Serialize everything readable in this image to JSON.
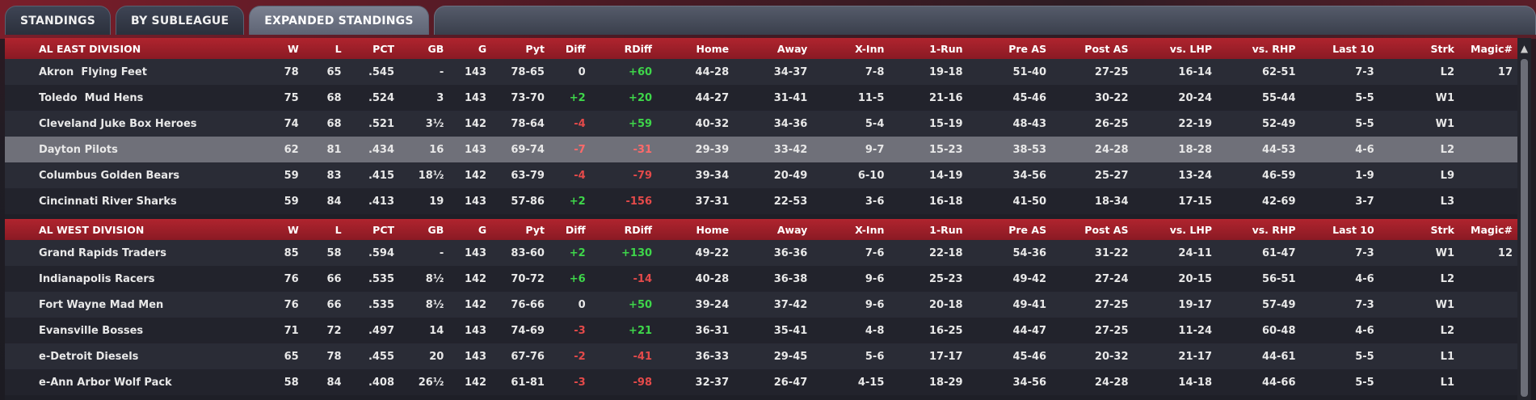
{
  "tabs": [
    {
      "label": "STANDINGS",
      "active": false
    },
    {
      "label": "BY SUBLEAGUE",
      "active": false
    },
    {
      "label": "EXPANDED STANDINGS",
      "active": true
    }
  ],
  "columns": [
    "W",
    "L",
    "PCT",
    "GB",
    "G",
    "Pyt",
    "Diff",
    "RDiff",
    "Home",
    "Away",
    "X-Inn",
    "1-Run",
    "Pre AS",
    "Post AS",
    "vs. LHP",
    "vs. RHP",
    "Last 10",
    "Strk",
    "Magic#"
  ],
  "divisions": [
    {
      "name": "AL EAST DIVISION",
      "teams": [
        {
          "team": "Akron  Flying Feet",
          "W": "78",
          "L": "65",
          "PCT": ".545",
          "GB": "-",
          "G": "143",
          "Pyt": "78-65",
          "Diff": "0",
          "RDiff": "+60",
          "Home": "44-28",
          "Away": "34-37",
          "XInn": "7-8",
          "OneRun": "19-18",
          "PreAS": "51-40",
          "PostAS": "27-25",
          "vsLHP": "16-14",
          "vsRHP": "62-51",
          "Last10": "7-3",
          "Strk": "L2",
          "Magic": "17"
        },
        {
          "team": "Toledo  Mud Hens",
          "W": "75",
          "L": "68",
          "PCT": ".524",
          "GB": "3",
          "G": "143",
          "Pyt": "73-70",
          "Diff": "+2",
          "RDiff": "+20",
          "Home": "44-27",
          "Away": "31-41",
          "XInn": "11-5",
          "OneRun": "21-16",
          "PreAS": "45-46",
          "PostAS": "30-22",
          "vsLHP": "20-24",
          "vsRHP": "55-44",
          "Last10": "5-5",
          "Strk": "W1",
          "Magic": ""
        },
        {
          "team": "Cleveland Juke Box Heroes",
          "W": "74",
          "L": "68",
          "PCT": ".521",
          "GB": "3½",
          "G": "142",
          "Pyt": "78-64",
          "Diff": "-4",
          "RDiff": "+59",
          "Home": "40-32",
          "Away": "34-36",
          "XInn": "5-4",
          "OneRun": "15-19",
          "PreAS": "48-43",
          "PostAS": "26-25",
          "vsLHP": "22-19",
          "vsRHP": "52-49",
          "Last10": "5-5",
          "Strk": "W1",
          "Magic": ""
        },
        {
          "team": "Dayton Pilots",
          "W": "62",
          "L": "81",
          "PCT": ".434",
          "GB": "16",
          "G": "143",
          "Pyt": "69-74",
          "Diff": "-7",
          "RDiff": "-31",
          "Home": "29-39",
          "Away": "33-42",
          "XInn": "9-7",
          "OneRun": "15-23",
          "PreAS": "38-53",
          "PostAS": "24-28",
          "vsLHP": "18-28",
          "vsRHP": "44-53",
          "Last10": "4-6",
          "Strk": "L2",
          "Magic": "",
          "highlight": true
        },
        {
          "team": "Columbus Golden Bears",
          "W": "59",
          "L": "83",
          "PCT": ".415",
          "GB": "18½",
          "G": "142",
          "Pyt": "63-79",
          "Diff": "-4",
          "RDiff": "-79",
          "Home": "39-34",
          "Away": "20-49",
          "XInn": "6-10",
          "OneRun": "14-19",
          "PreAS": "34-56",
          "PostAS": "25-27",
          "vsLHP": "13-24",
          "vsRHP": "46-59",
          "Last10": "1-9",
          "Strk": "L9",
          "Magic": ""
        },
        {
          "team": "Cincinnati River Sharks",
          "W": "59",
          "L": "84",
          "PCT": ".413",
          "GB": "19",
          "G": "143",
          "Pyt": "57-86",
          "Diff": "+2",
          "RDiff": "-156",
          "Home": "37-31",
          "Away": "22-53",
          "XInn": "3-6",
          "OneRun": "16-18",
          "PreAS": "41-50",
          "PostAS": "18-34",
          "vsLHP": "17-15",
          "vsRHP": "42-69",
          "Last10": "3-7",
          "Strk": "L3",
          "Magic": ""
        }
      ]
    },
    {
      "name": "AL WEST DIVISION",
      "teams": [
        {
          "team": "Grand Rapids Traders",
          "W": "85",
          "L": "58",
          "PCT": ".594",
          "GB": "-",
          "G": "143",
          "Pyt": "83-60",
          "Diff": "+2",
          "RDiff": "+130",
          "Home": "49-22",
          "Away": "36-36",
          "XInn": "7-6",
          "OneRun": "22-18",
          "PreAS": "54-36",
          "PostAS": "31-22",
          "vsLHP": "24-11",
          "vsRHP": "61-47",
          "Last10": "7-3",
          "Strk": "W1",
          "Magic": "12"
        },
        {
          "team": "Indianapolis Racers",
          "W": "76",
          "L": "66",
          "PCT": ".535",
          "GB": "8½",
          "G": "142",
          "Pyt": "70-72",
          "Diff": "+6",
          "RDiff": "-14",
          "Home": "40-28",
          "Away": "36-38",
          "XInn": "9-6",
          "OneRun": "25-23",
          "PreAS": "49-42",
          "PostAS": "27-24",
          "vsLHP": "20-15",
          "vsRHP": "56-51",
          "Last10": "4-6",
          "Strk": "L2",
          "Magic": ""
        },
        {
          "team": "Fort Wayne Mad Men",
          "W": "76",
          "L": "66",
          "PCT": ".535",
          "GB": "8½",
          "G": "142",
          "Pyt": "76-66",
          "Diff": "0",
          "RDiff": "+50",
          "Home": "39-24",
          "Away": "37-42",
          "XInn": "9-6",
          "OneRun": "20-18",
          "PreAS": "49-41",
          "PostAS": "27-25",
          "vsLHP": "19-17",
          "vsRHP": "57-49",
          "Last10": "7-3",
          "Strk": "W1",
          "Magic": ""
        },
        {
          "team": "Evansville Bosses",
          "W": "71",
          "L": "72",
          "PCT": ".497",
          "GB": "14",
          "G": "143",
          "Pyt": "74-69",
          "Diff": "-3",
          "RDiff": "+21",
          "Home": "36-31",
          "Away": "35-41",
          "XInn": "4-8",
          "OneRun": "16-25",
          "PreAS": "44-47",
          "PostAS": "27-25",
          "vsLHP": "11-24",
          "vsRHP": "60-48",
          "Last10": "4-6",
          "Strk": "L2",
          "Magic": ""
        },
        {
          "team": "e-Detroit Diesels",
          "W": "65",
          "L": "78",
          "PCT": ".455",
          "GB": "20",
          "G": "143",
          "Pyt": "67-76",
          "Diff": "-2",
          "RDiff": "-41",
          "Home": "36-33",
          "Away": "29-45",
          "XInn": "5-6",
          "OneRun": "17-17",
          "PreAS": "45-46",
          "PostAS": "20-32",
          "vsLHP": "21-17",
          "vsRHP": "44-61",
          "Last10": "5-5",
          "Strk": "L1",
          "Magic": ""
        },
        {
          "team": "e-Ann Arbor Wolf Pack",
          "W": "58",
          "L": "84",
          "PCT": ".408",
          "GB": "26½",
          "G": "142",
          "Pyt": "61-81",
          "Diff": "-3",
          "RDiff": "-98",
          "Home": "32-37",
          "Away": "26-47",
          "XInn": "4-15",
          "OneRun": "18-29",
          "PreAS": "34-56",
          "PostAS": "24-28",
          "vsLHP": "14-18",
          "vsRHP": "44-66",
          "Last10": "5-5",
          "Strk": "L1",
          "Magic": ""
        }
      ]
    }
  ],
  "colors": {
    "positive": "#3ed64a",
    "negative": "#e44a4a",
    "header": "#a0202a",
    "highlight": "#6f7079"
  },
  "icons": {
    "scroll_up": "chevron-up-icon"
  }
}
